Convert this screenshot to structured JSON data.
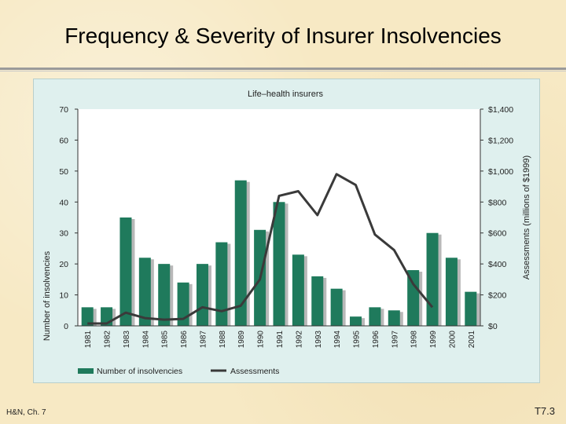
{
  "slide": {
    "title": "Frequency & Severity of Insurer Insolvencies",
    "footer_left": "H&N, Ch. 7",
    "footer_right": "T7.3"
  },
  "colors": {
    "bar": "#1f7a5c",
    "bar_shadow": "#b8b8b8",
    "line": "#3a3a3a",
    "panel_bg": "#dff0ee",
    "plot_bg": "#ffffff"
  },
  "chart_data": {
    "type": "bar",
    "title": "Life–health insurers",
    "categories": [
      "1981",
      "1982",
      "1983",
      "1984",
      "1985",
      "1986",
      "1987",
      "1988",
      "1989",
      "1990",
      "1991",
      "1992",
      "1993",
      "1994",
      "1995",
      "1996",
      "1997",
      "1998",
      "1999",
      "2000",
      "2001"
    ],
    "series": [
      {
        "name": "Number of insolvencies",
        "type": "bar",
        "axis": "left",
        "values": [
          6,
          6,
          35,
          22,
          20,
          14,
          20,
          27,
          47,
          31,
          40,
          23,
          16,
          12,
          3,
          6,
          5,
          18,
          30,
          22,
          11
        ]
      },
      {
        "name": "Assessments",
        "type": "line",
        "axis": "right",
        "values": [
          15,
          15,
          85,
          50,
          40,
          45,
          120,
          95,
          130,
          300,
          840,
          870,
          715,
          980,
          910,
          590,
          490,
          270,
          120,
          null,
          null
        ]
      }
    ],
    "ylabel": "Number of insolvencies",
    "ylim": [
      0,
      70
    ],
    "yticks": [
      "0",
      "10",
      "20",
      "30",
      "40",
      "50",
      "60",
      "70"
    ],
    "y2label": "Assessments (millions of $1999)",
    "y2lim": [
      0,
      1400
    ],
    "y2ticks": [
      "$0",
      "$200",
      "$400",
      "$600",
      "$800",
      "$1,000",
      "$1,200",
      "$1,400"
    ],
    "legend": [
      "Number of insolvencies",
      "Assessments"
    ],
    "legend_position": "bottom-left"
  }
}
